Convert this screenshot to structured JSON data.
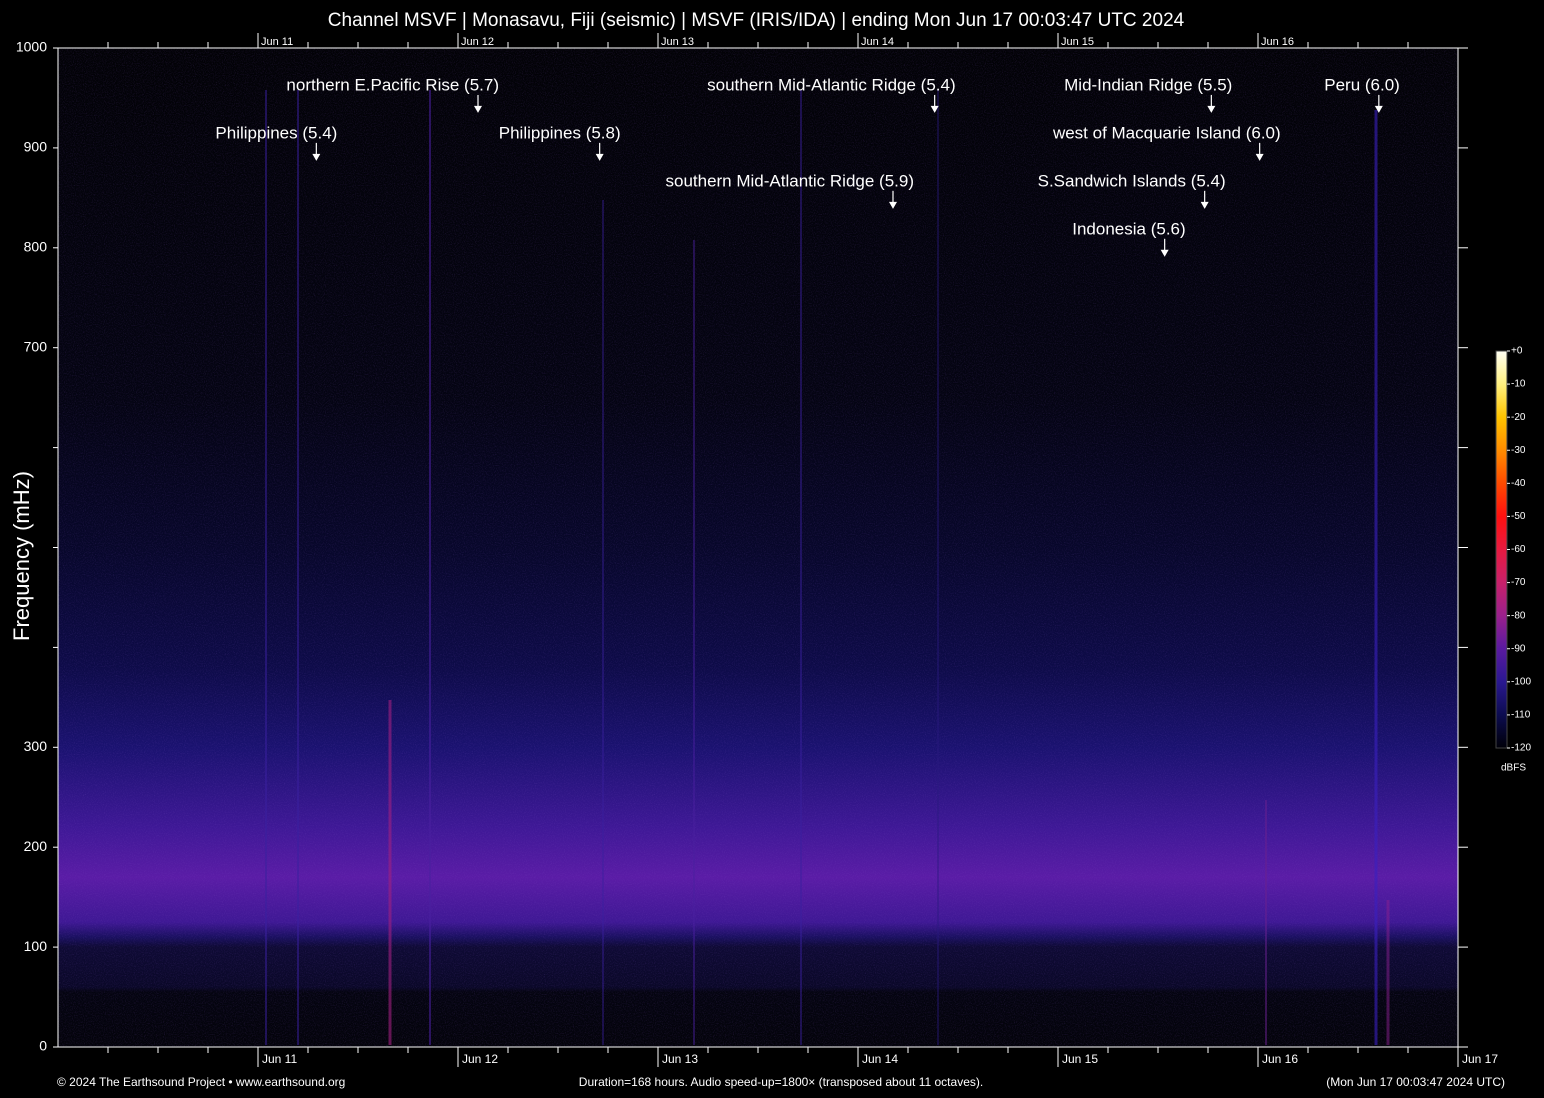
{
  "chart_data": {
    "type": "spectrogram",
    "title": "Channel MSVF | Monasavu, Fiji (seismic) | MSVF (IRIS/IDA) | ending Mon Jun 17 00:03:47 UTC 2024",
    "y_label": "Frequency (mHz)",
    "ylim": [
      0,
      1000
    ],
    "yticks": [
      0,
      100,
      200,
      300,
      700,
      800,
      900,
      1000
    ],
    "yticks_minor": [
      400,
      500,
      600
    ],
    "xlim": [
      0,
      168
    ],
    "xticks": [
      {
        "value": 24,
        "label": "Jun 11"
      },
      {
        "value": 48,
        "label": "Jun 12"
      },
      {
        "value": 72,
        "label": "Jun 13"
      },
      {
        "value": 96,
        "label": "Jun 14"
      },
      {
        "value": 120,
        "label": "Jun 15"
      },
      {
        "value": 144,
        "label": "Jun 16"
      },
      {
        "value": 168,
        "label": "Jun 17"
      }
    ],
    "xticks_minor": [
      6,
      12,
      18,
      30,
      36,
      42,
      54,
      60,
      66,
      78,
      84,
      90,
      102,
      108,
      114,
      126,
      132,
      138,
      150,
      156,
      162
    ],
    "annotations": [
      {
        "text": "Philippines (5.4)",
        "x": 31.0,
        "y": 887
      },
      {
        "text": "northern E.Pacific Rise (5.7)",
        "x": 50.4,
        "y": 935
      },
      {
        "text": "Philippines (5.8)",
        "x": 65.0,
        "y": 887
      },
      {
        "text": "southern Mid-Atlantic Ridge (5.9)",
        "x": 100.2,
        "y": 839
      },
      {
        "text": "southern Mid-Atlantic Ridge (5.4)",
        "x": 105.2,
        "y": 935
      },
      {
        "text": "Indonesia (5.6)",
        "x": 132.8,
        "y": 791
      },
      {
        "text": "S.Sandwich Islands (5.4)",
        "x": 137.6,
        "y": 839
      },
      {
        "text": "Mid-Indian Ridge (5.5)",
        "x": 138.4,
        "y": 935
      },
      {
        "text": "west of Macquarie Island (6.0)",
        "x": 144.2,
        "y": 887
      },
      {
        "text": "Peru (6.0)",
        "x": 158.5,
        "y": 935
      }
    ],
    "colorbar": {
      "label": "dBFS",
      "zlim": [
        -120,
        0
      ],
      "ticks": [
        {
          "value": 0,
          "label": "+0"
        },
        -10,
        -20,
        -30,
        -40,
        -50,
        -60,
        -70,
        -80,
        -90,
        -100,
        -110,
        -120
      ],
      "colormap": [
        "#000008",
        "#0c0c50",
        "#2a1890",
        "#5a1aa0",
        "#9a208c",
        "#c8206a",
        "#e81a40",
        "#ff1010",
        "#ff4a00",
        "#ff8c00",
        "#ffc400",
        "#fff080",
        "#fffff4"
      ]
    },
    "footer_left": "© 2024 The Earthsound Project • www.earthsound.org",
    "footer_center": "Duration=168 hours. Audio speed-up=1800× (transposed about 11 octaves).",
    "footer_right": "(Mon Jun 17 00:03:47 2024 UTC)"
  }
}
